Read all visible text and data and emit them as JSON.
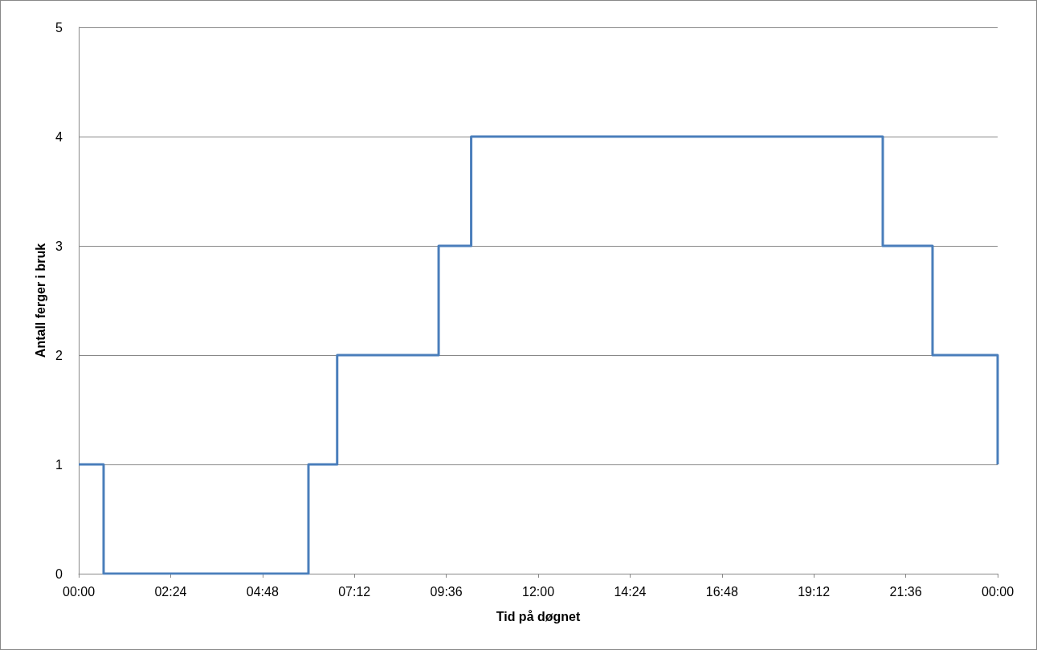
{
  "chart_data": {
    "type": "step",
    "xlabel": "Tid på døgnet",
    "ylabel": "Antall ferger i bruk",
    "x": [
      0,
      0.65,
      6,
      6.75,
      9.4,
      10.25,
      21,
      22.3,
      24
    ],
    "values": [
      1,
      0,
      1,
      2,
      3,
      4,
      3,
      2,
      1
    ],
    "color": "#4a7ebb",
    "xlim": [
      0,
      24
    ],
    "xticks": [
      {
        "value": 0,
        "label": "00:00"
      },
      {
        "value": 2.4,
        "label": "02:24"
      },
      {
        "value": 4.8,
        "label": "04:48"
      },
      {
        "value": 7.2,
        "label": "07:12"
      },
      {
        "value": 9.6,
        "label": "09:36"
      },
      {
        "value": 12,
        "label": "12:00"
      },
      {
        "value": 14.4,
        "label": "14:24"
      },
      {
        "value": 16.8,
        "label": "16:48"
      },
      {
        "value": 19.2,
        "label": "19:12"
      },
      {
        "value": 21.6,
        "label": "21:36"
      },
      {
        "value": 24,
        "label": "00:00"
      }
    ],
    "ylim": [
      0,
      5
    ],
    "yticks": [
      0,
      1,
      2,
      3,
      4,
      5
    ],
    "grid": "y"
  }
}
